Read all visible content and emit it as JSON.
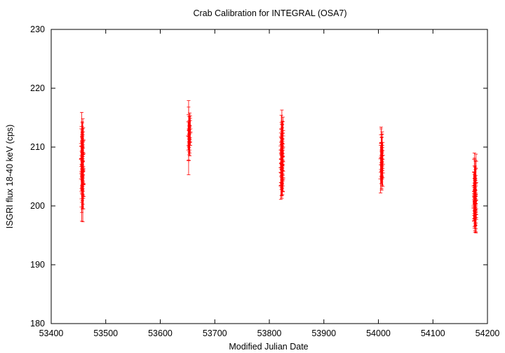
{
  "chart_data": {
    "type": "scatter",
    "title": "Crab Calibration for INTEGRAL (OSA7)",
    "xlabel": "Modified Julian Date",
    "ylabel": "ISGRI flux 18-40 keV (cps)",
    "xlim": [
      53400,
      54200
    ],
    "ylim": [
      180,
      230
    ],
    "x_ticks": [
      53400,
      53500,
      53600,
      53700,
      53800,
      53900,
      54000,
      54100,
      54200
    ],
    "y_ticks": [
      180,
      190,
      200,
      210,
      220,
      230
    ],
    "grid": false,
    "legend": "none",
    "marker": "plus",
    "error_bars": true,
    "color": "#ff0000",
    "series": [
      {
        "x": [
          53456,
          53458,
          53457,
          53459,
          53455,
          53457,
          53458,
          53456,
          53459,
          53457,
          53455,
          53458,
          53456,
          53457,
          53459,
          53458,
          53456,
          53457,
          53455,
          53458,
          53459,
          53457,
          53456,
          53458,
          53457,
          53459,
          53456,
          53458,
          53457,
          53455,
          53458,
          53457,
          53459,
          53456,
          53458,
          53457,
          53456,
          53458,
          53652,
          53654,
          53653,
          53655,
          53651,
          53653,
          53654,
          53652,
          53655,
          53653,
          53654,
          53652,
          53653,
          53655,
          53652,
          53654,
          53822,
          53824,
          53823,
          53825,
          53821,
          53823,
          53824,
          53822,
          53825,
          53823,
          53821,
          53824,
          53822,
          53823,
          53825,
          53824,
          53822,
          53823,
          53821,
          53824,
          53825,
          53823,
          53822,
          53824,
          53823,
          53825,
          53822,
          53824,
          53823,
          53821,
          53824,
          53823,
          53825,
          53822,
          53824,
          53823,
          53822,
          53824,
          53823,
          53825,
          53822,
          53824,
          53823,
          53821,
          54005,
          54007,
          54006,
          54008,
          54004,
          54006,
          54007,
          54005,
          54008,
          54006,
          54004,
          54007,
          54006,
          54005,
          54008,
          54007,
          54006,
          54005,
          54176,
          54178,
          54177,
          54179,
          54175,
          54177,
          54178,
          54176,
          54179,
          54177,
          54175,
          54178,
          54176,
          54177,
          54179,
          54178,
          54176,
          54177,
          54175,
          54178,
          54179,
          54177,
          54176,
          54178,
          54177,
          54179,
          54176,
          54178,
          54177,
          54175,
          54178,
          54177,
          54179,
          54176,
          54178,
          54177,
          54176,
          54178,
          54177,
          54179
        ],
        "y": [
          213.5,
          212.6,
          211.8,
          211.2,
          210.6,
          210.2,
          209.8,
          209.3,
          208.9,
          208.4,
          208.0,
          207.6,
          207.1,
          206.7,
          206.3,
          205.8,
          205.4,
          205.0,
          204.6,
          204.2,
          203.8,
          203.3,
          202.9,
          202.5,
          202.0,
          201.6,
          201.2,
          210.9,
          209.1,
          207.9,
          206.2,
          204.9,
          203.6,
          199.8,
          199.5,
          212.1,
          208.6,
          205.3,
          214.3,
          213.6,
          212.9,
          212.4,
          211.9,
          211.4,
          210.8,
          210.3,
          213.1,
          212.2,
          211.6,
          215.5,
          210.9,
          212.6,
          207.7,
          211.2,
          211.6,
          211.0,
          210.5,
          210.0,
          209.5,
          209.0,
          208.5,
          208.0,
          207.5,
          207.0,
          206.5,
          206.0,
          205.6,
          205.2,
          204.8,
          204.4,
          204.0,
          203.7,
          203.4,
          212.3,
          211.9,
          209.8,
          208.8,
          207.8,
          206.8,
          205.9,
          205.0,
          204.2,
          213.9,
          210.2,
          208.3,
          206.3,
          204.6,
          213.1,
          211.4,
          209.3,
          207.3,
          205.4,
          203.9,
          212.8,
          210.8,
          208.9,
          207.1,
          205.7,
          210.6,
          209.9,
          209.2,
          208.6,
          208.0,
          207.4,
          206.8,
          206.2,
          205.6,
          205.1,
          204.6,
          210.3,
          209.5,
          208.3,
          207.1,
          206.0,
          204.9,
          212.1,
          205.8,
          205.2,
          204.6,
          204.0,
          203.4,
          202.8,
          202.2,
          201.6,
          201.0,
          200.4,
          199.8,
          199.2,
          198.7,
          198.2,
          197.7,
          203.7,
          202.5,
          201.3,
          200.1,
          199.0,
          198.0,
          204.3,
          203.1,
          201.9,
          200.7,
          199.5,
          198.4,
          202.0,
          200.8,
          199.6,
          198.9,
          197.9,
          207.6,
          207.9,
          203.9,
          202.7,
          201.5,
          200.3,
          199.3,
          198.5
        ],
        "err": [
          2.4,
          2.2,
          2.3,
          2.1,
          2.5,
          2.2,
          2.3,
          2.4,
          2.2,
          2.3,
          2.1,
          2.4,
          2.2,
          2.3,
          2.5,
          2.2,
          2.3,
          2.4,
          2.1,
          2.3,
          2.2,
          2.4,
          2.3,
          2.2,
          2.5,
          2.1,
          2.3,
          2.2,
          2.4,
          2.3,
          2.2,
          2.1,
          2.3,
          2.4,
          2.2,
          2.2,
          2.3,
          2.4,
          2.5,
          2.2,
          2.3,
          2.1,
          2.4,
          2.2,
          2.3,
          2.5,
          2.2,
          2.3,
          2.1,
          2.4,
          2.2,
          2.3,
          2.4,
          2.2,
          2.6,
          2.3,
          2.2,
          2.4,
          2.3,
          2.5,
          2.2,
          2.4,
          2.3,
          2.2,
          2.5,
          2.3,
          2.4,
          2.2,
          2.3,
          2.5,
          2.2,
          2.4,
          2.3,
          2.1,
          2.4,
          2.3,
          2.2,
          2.4,
          2.3,
          2.5,
          2.2,
          2.3,
          2.4,
          2.2,
          2.3,
          2.4,
          2.2,
          2.3,
          2.4,
          2.2,
          2.3,
          2.4,
          2.2,
          2.3,
          2.2,
          2.4,
          2.3,
          2.2,
          2.5,
          2.3,
          2.4,
          2.2,
          2.3,
          2.5,
          2.2,
          2.4,
          2.3,
          2.2,
          2.4,
          2.3,
          2.2,
          2.4,
          2.3,
          2.5,
          2.2,
          1.3,
          2.3,
          2.5,
          2.2,
          2.4,
          2.3,
          2.2,
          2.5,
          2.3,
          2.4,
          2.2,
          2.3,
          2.5,
          2.2,
          2.4,
          2.3,
          2.5,
          2.2,
          2.4,
          2.3,
          2.2,
          2.4,
          2.3,
          2.2,
          2.5,
          2.3,
          2.4,
          2.2,
          2.3,
          2.4,
          2.2,
          2.3,
          2.4,
          1.2,
          1.1,
          2.3,
          2.2,
          2.4,
          2.3,
          2.2,
          2.4
        ]
      }
    ]
  }
}
